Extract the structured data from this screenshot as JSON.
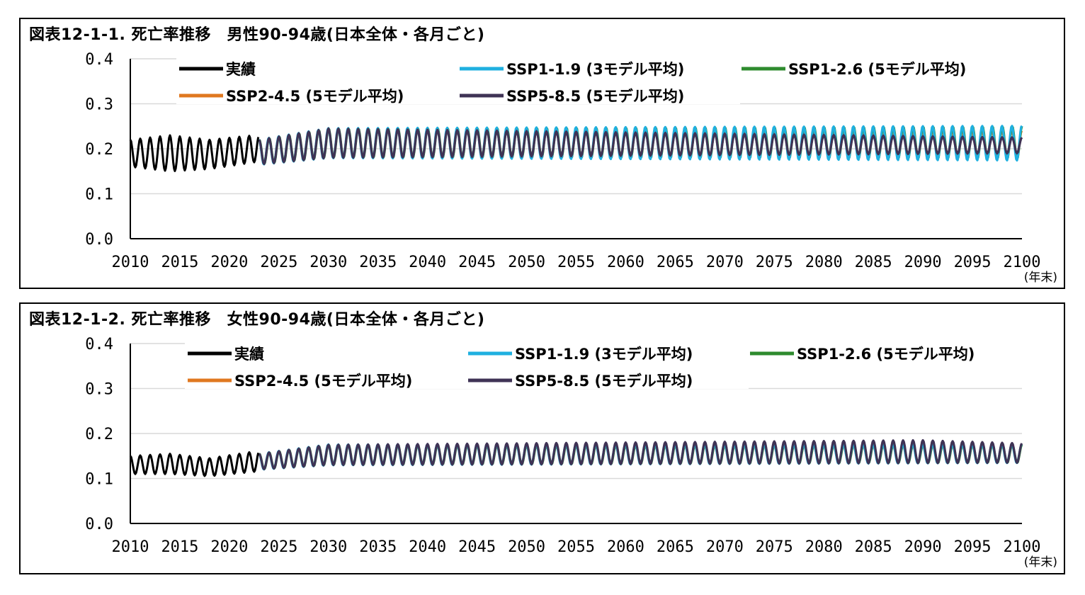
{
  "colors": {
    "actual": "#000000",
    "ssp119": "#1fb0e0",
    "ssp126": "#2e8b2e",
    "ssp245": "#e07820",
    "ssp585": "#3f3355",
    "grid": "#d9d9d9"
  },
  "chart_data": [
    {
      "type": "line",
      "title": "図表12-1-1. 死亡率推移　男性90-94歳(日本全体・各月ごと)",
      "x_unit_label": "(年末)",
      "xlim": [
        2010,
        2100
      ],
      "x_ticks": [
        "2010",
        "2015",
        "2020",
        "2025",
        "2030",
        "2035",
        "2040",
        "2045",
        "2050",
        "2055",
        "2060",
        "2065",
        "2070",
        "2075",
        "2080",
        "2085",
        "2090",
        "2095",
        "2100"
      ],
      "ylim": [
        0,
        0.4
      ],
      "y_ticks": [
        "0.0",
        "0.1",
        "0.2",
        "0.3",
        "0.4"
      ],
      "grid": "horizontal",
      "legend": [
        {
          "key": "actual",
          "label": "実績"
        },
        {
          "key": "ssp119",
          "label": "SSP1-1.9 (3モデル平均)"
        },
        {
          "key": "ssp126",
          "label": "SSP1-2.6 (5モデル平均)"
        },
        {
          "key": "ssp245",
          "label": "SSP2-4.5 (5モデル平均)"
        },
        {
          "key": "ssp585",
          "label": "SSP5-8.5 (5モデル平均)"
        }
      ],
      "series": [
        {
          "name": "実績",
          "key": "actual",
          "x_start": 2010,
          "x_end": 2022.9,
          "peak": [
            [
              2010,
              0.22
            ],
            [
              2014,
              0.23
            ],
            [
              2018,
              0.22
            ],
            [
              2022.5,
              0.23
            ]
          ],
          "trough": [
            [
              2010,
              0.16
            ],
            [
              2014,
              0.15
            ],
            [
              2018,
              0.155
            ],
            [
              2022.5,
              0.17
            ]
          ]
        },
        {
          "name": "SSP1-1.9 (3モデル平均)",
          "key": "ssp119",
          "x_start": 2023,
          "x_end": 2100,
          "peak": [
            [
              2023,
              0.22
            ],
            [
              2030,
              0.245
            ],
            [
              2100,
              0.25
            ]
          ],
          "trough": [
            [
              2023,
              0.165
            ],
            [
              2030,
              0.18
            ],
            [
              2100,
              0.175
            ]
          ]
        },
        {
          "name": "SSP1-2.6 (5モデル平均)",
          "key": "ssp126",
          "x_start": 2023,
          "x_end": 2100,
          "peak": [
            [
              2023,
              0.22
            ],
            [
              2030,
              0.245
            ],
            [
              2100,
              0.25
            ]
          ],
          "trough": [
            [
              2023,
              0.165
            ],
            [
              2030,
              0.18
            ],
            [
              2100,
              0.178
            ]
          ]
        },
        {
          "name": "SSP2-4.5 (5モデル平均)",
          "key": "ssp245",
          "x_start": 2023,
          "x_end": 2100,
          "peak": [
            [
              2023,
              0.22
            ],
            [
              2030,
              0.245
            ],
            [
              2100,
              0.24
            ]
          ],
          "trough": [
            [
              2023,
              0.165
            ],
            [
              2030,
              0.18
            ],
            [
              2100,
              0.183
            ]
          ]
        },
        {
          "name": "SSP5-8.5 (5モデル平均)",
          "key": "ssp585",
          "x_start": 2023,
          "x_end": 2100,
          "peak": [
            [
              2023,
              0.22
            ],
            [
              2030,
              0.245
            ],
            [
              2100,
              0.225
            ]
          ],
          "trough": [
            [
              2023,
              0.165
            ],
            [
              2030,
              0.18
            ],
            [
              2100,
              0.19
            ]
          ]
        }
      ]
    },
    {
      "type": "line",
      "title": "図表12-1-2. 死亡率推移　女性90-94歳(日本全体・各月ごと)",
      "x_unit_label": "(年末)",
      "xlim": [
        2010,
        2100
      ],
      "x_ticks": [
        "2010",
        "2015",
        "2020",
        "2025",
        "2030",
        "2035",
        "2040",
        "2045",
        "2050",
        "2055",
        "2060",
        "2065",
        "2070",
        "2075",
        "2080",
        "2085",
        "2090",
        "2095",
        "2100"
      ],
      "ylim": [
        0,
        0.4
      ],
      "y_ticks": [
        "0.0",
        "0.1",
        "0.2",
        "0.3",
        "0.4"
      ],
      "grid": "horizontal",
      "legend": [
        {
          "key": "actual",
          "label": "実績"
        },
        {
          "key": "ssp119",
          "label": "SSP1-1.9 (3モデル平均)"
        },
        {
          "key": "ssp126",
          "label": "SSP1-2.6 (5モデル平均)"
        },
        {
          "key": "ssp245",
          "label": "SSP2-4.5 (5モデル平均)"
        },
        {
          "key": "ssp585",
          "label": "SSP5-8.5 (5モデル平均)"
        }
      ],
      "series": [
        {
          "name": "実績",
          "key": "actual",
          "x_start": 2010,
          "x_end": 2022.9,
          "peak": [
            [
              2010,
              0.15
            ],
            [
              2014,
              0.155
            ],
            [
              2018,
              0.145
            ],
            [
              2022.5,
              0.16
            ]
          ],
          "trough": [
            [
              2010,
              0.11
            ],
            [
              2014,
              0.11
            ],
            [
              2018,
              0.105
            ],
            [
              2022.5,
              0.115
            ]
          ]
        },
        {
          "name": "SSP1-1.9 (3モデル平均)",
          "key": "ssp119",
          "x_start": 2023,
          "x_end": 2100,
          "peak": [
            [
              2023,
              0.155
            ],
            [
              2030,
              0.175
            ],
            [
              2100,
              0.175
            ]
          ],
          "trough": [
            [
              2023,
              0.12
            ],
            [
              2030,
              0.13
            ],
            [
              2100,
              0.135
            ]
          ]
        },
        {
          "name": "SSP1-2.6 (5モデル平均)",
          "key": "ssp126",
          "x_start": 2023,
          "x_end": 2100,
          "peak": [
            [
              2023,
              0.155
            ],
            [
              2030,
              0.175
            ],
            [
              2100,
              0.175
            ]
          ],
          "trough": [
            [
              2023,
              0.12
            ],
            [
              2030,
              0.13
            ],
            [
              2100,
              0.135
            ]
          ]
        },
        {
          "name": "SSP2-4.5 (5モデル平均)",
          "key": "ssp245",
          "x_start": 2023,
          "x_end": 2100,
          "peak": [
            [
              2023,
              0.155
            ],
            [
              2030,
              0.175
            ],
            [
              2100,
              0.175
            ]
          ],
          "trough": [
            [
              2023,
              0.12
            ],
            [
              2030,
              0.13
            ],
            [
              2100,
              0.135
            ]
          ]
        },
        {
          "name": "SSP5-8.5 (5モデル平均)",
          "key": "ssp585",
          "x_start": 2023,
          "x_end": 2100,
          "peak": [
            [
              2023,
              0.155
            ],
            [
              2030,
              0.175
            ],
            [
              2090,
              0.185
            ],
            [
              2100,
              0.178
            ]
          ],
          "trough": [
            [
              2023,
              0.12
            ],
            [
              2030,
              0.13
            ],
            [
              2100,
              0.135
            ]
          ]
        }
      ]
    }
  ]
}
